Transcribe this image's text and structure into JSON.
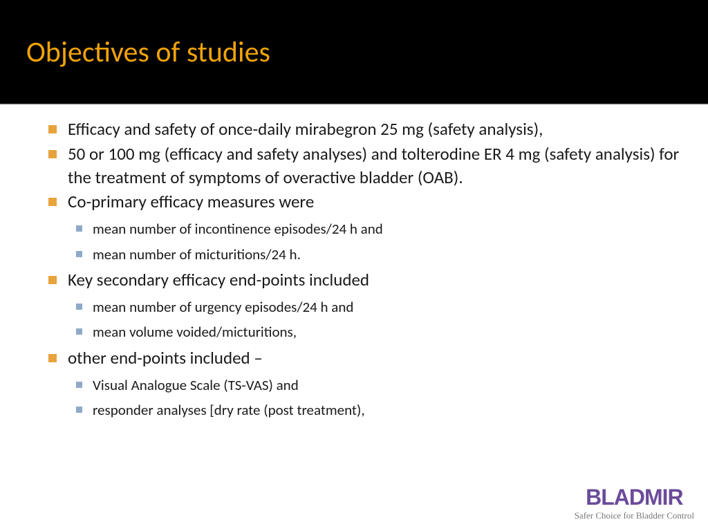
{
  "title": "Objectives of studies",
  "colors": {
    "title_bg": "#000000",
    "title_text": "#f0a30a",
    "bullet_l1": "#e8a33d",
    "bullet_l2": "#8fa9c9",
    "body_text": "#1a1a1a",
    "logo_color": "#6b4b9a",
    "tagline_color": "#777777",
    "background": "#ffffff"
  },
  "typography": {
    "title_fontsize": 42,
    "l1_fontsize": 25,
    "l2_fontsize": 21,
    "logo_fontsize": 32,
    "tagline_fontsize": 13
  },
  "bullets": [
    {
      "text": "Efficacy and safety of once-daily mirabegron 25 mg (safety analysis),",
      "sub": []
    },
    {
      "text": "50 or 100 mg (efficacy and safety analyses) and tolterodine ER 4 mg (safety analysis) for the treatment of symptoms of overactive bladder (OAB).",
      "sub": []
    },
    {
      "text": "Co-primary efficacy measures were",
      "sub": [
        "mean number of incontinence episodes/24 h and",
        "mean number of micturitions/24 h."
      ]
    },
    {
      "text": "Key secondary efficacy end-points included",
      "sub": [
        "mean number of urgency episodes/24 h and",
        "mean volume voided/micturitions,"
      ]
    },
    {
      "text": "other end-points included –",
      "sub": [
        "Visual Analogue Scale (TS-VAS) and",
        "responder analyses [dry rate (post treatment),"
      ]
    }
  ],
  "logo": {
    "name": "BLADMIR",
    "tagline": "Safer Choice for Bladder Control"
  }
}
